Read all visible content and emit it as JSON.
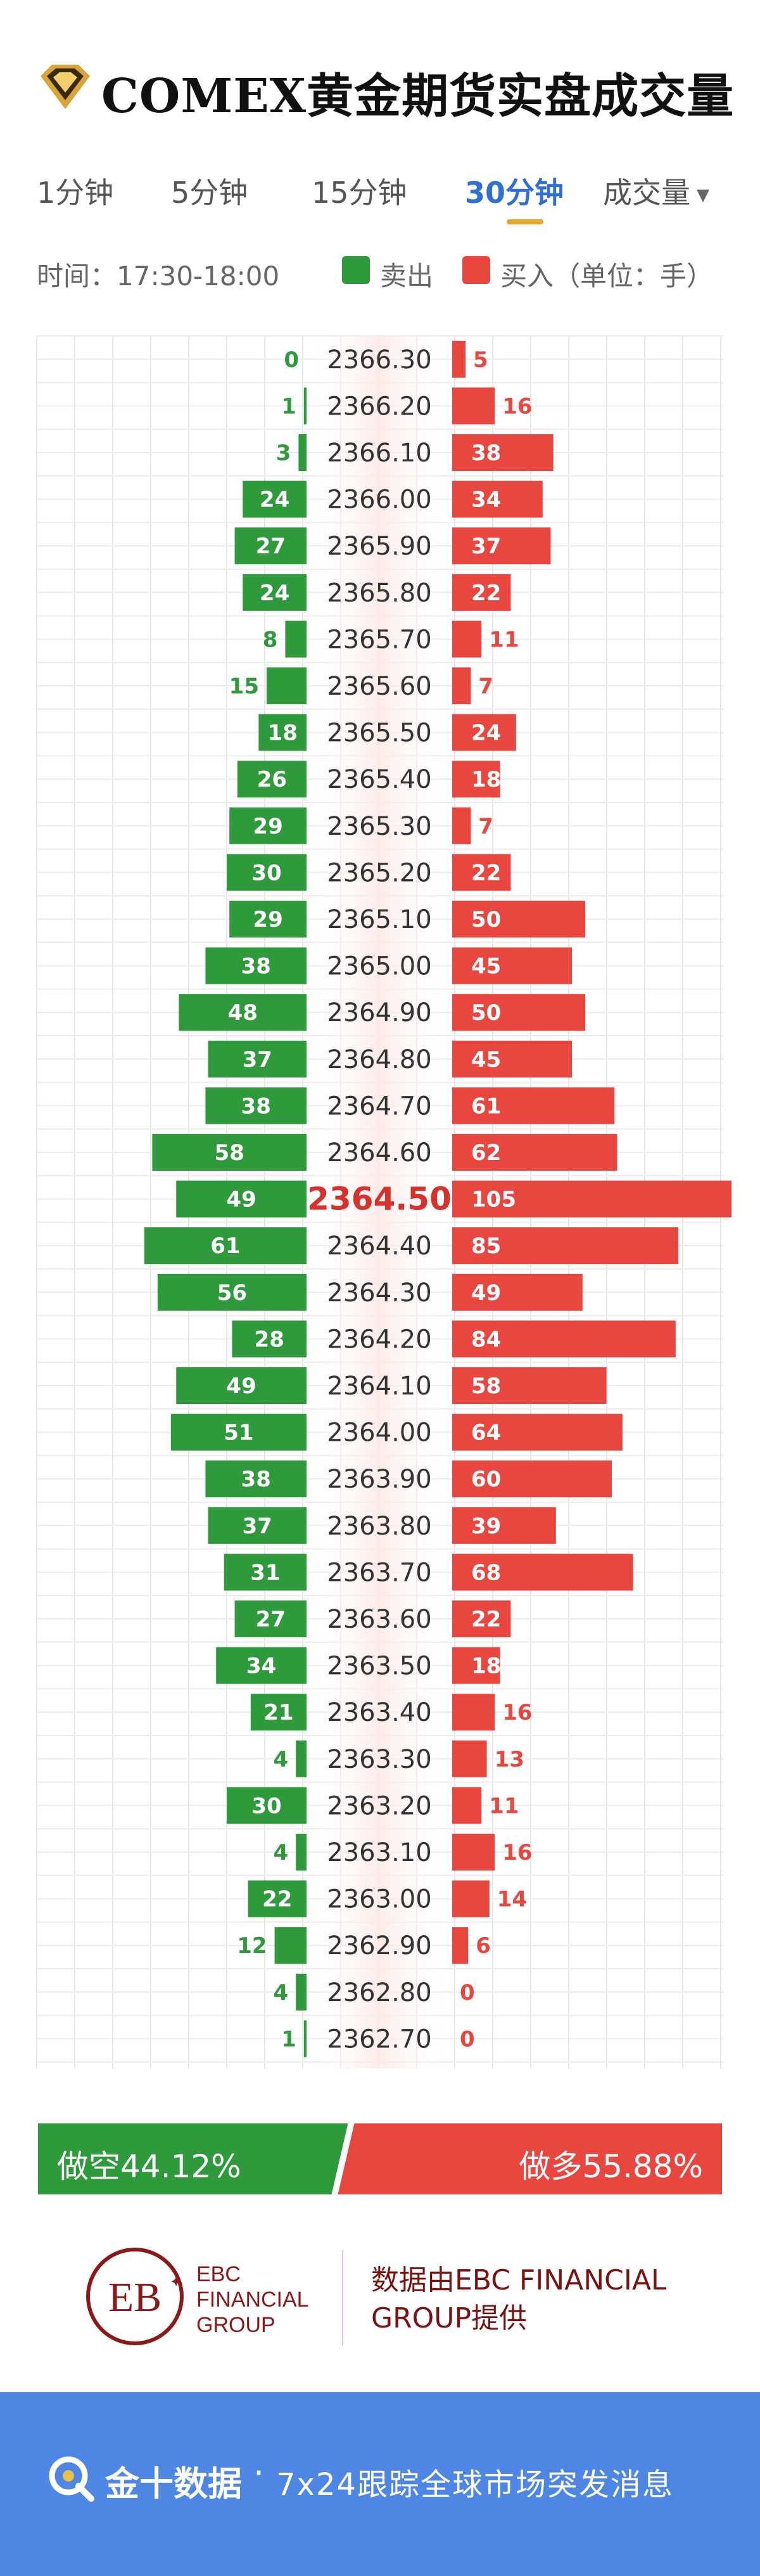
{
  "header": {
    "title": "COMEX黄金期货实盘成交量",
    "logo_icon": "diamond-icon"
  },
  "tabs": [
    {
      "label": "1分钟",
      "active": false
    },
    {
      "label": "5分钟",
      "active": false
    },
    {
      "label": "15分钟",
      "active": false
    },
    {
      "label": "30分钟",
      "active": true
    }
  ],
  "volume_menu": {
    "label": "成交量",
    "icon": "caret-down-icon"
  },
  "legend": {
    "time_text": "时间：17:30-18:00",
    "sell_label": "卖出",
    "buy_label": "买入（单位：手）",
    "sell_color": "#2f9a3c",
    "buy_color": "#e8473f"
  },
  "chart_data": {
    "type": "bar",
    "orientation": "horizontal-diverging",
    "title": "COMEX黄金期货实盘成交量",
    "categories": [
      "2366.30",
      "2366.20",
      "2366.10",
      "2366.00",
      "2365.90",
      "2365.80",
      "2365.70",
      "2365.60",
      "2365.50",
      "2365.40",
      "2365.30",
      "2365.20",
      "2365.10",
      "2365.00",
      "2364.90",
      "2364.80",
      "2364.70",
      "2364.60",
      "2364.50",
      "2364.40",
      "2364.30",
      "2364.20",
      "2364.10",
      "2364.00",
      "2363.90",
      "2363.80",
      "2363.70",
      "2363.60",
      "2363.50",
      "2363.40",
      "2363.30",
      "2363.20",
      "2363.10",
      "2363.00",
      "2362.90",
      "2362.80",
      "2362.70"
    ],
    "series": [
      {
        "name": "卖出",
        "color": "#2f9a3c",
        "values": [
          0,
          1,
          3,
          24,
          27,
          24,
          8,
          15,
          18,
          26,
          29,
          30,
          29,
          38,
          48,
          37,
          38,
          58,
          49,
          61,
          56,
          28,
          49,
          51,
          38,
          37,
          31,
          27,
          34,
          21,
          4,
          30,
          4,
          22,
          12,
          4,
          1
        ]
      },
      {
        "name": "买入",
        "color": "#e8473f",
        "values": [
          5,
          16,
          38,
          34,
          37,
          22,
          11,
          7,
          24,
          18,
          7,
          22,
          50,
          45,
          50,
          45,
          61,
          62,
          105,
          85,
          49,
          84,
          58,
          64,
          60,
          39,
          68,
          22,
          18,
          16,
          13,
          11,
          16,
          14,
          6,
          0,
          0
        ]
      }
    ],
    "highlight_category": "2364.50",
    "unit": "手",
    "grid": true
  },
  "ratio": {
    "short_label": "做空44.12%",
    "long_label": "做多55.88%",
    "short_pct": 44.12,
    "long_pct": 55.88
  },
  "attribution": {
    "logo_name_line1": "EBC",
    "logo_name_line2": "FINANCIAL",
    "logo_name_line3": "GROUP",
    "text": "数据由EBC FINANCIAL GROUP提供"
  },
  "footer": {
    "brand": "金十数据",
    "separator": "·",
    "slogan": "7x24跟踪全球市场突发消息",
    "background": "#4e86e3"
  }
}
